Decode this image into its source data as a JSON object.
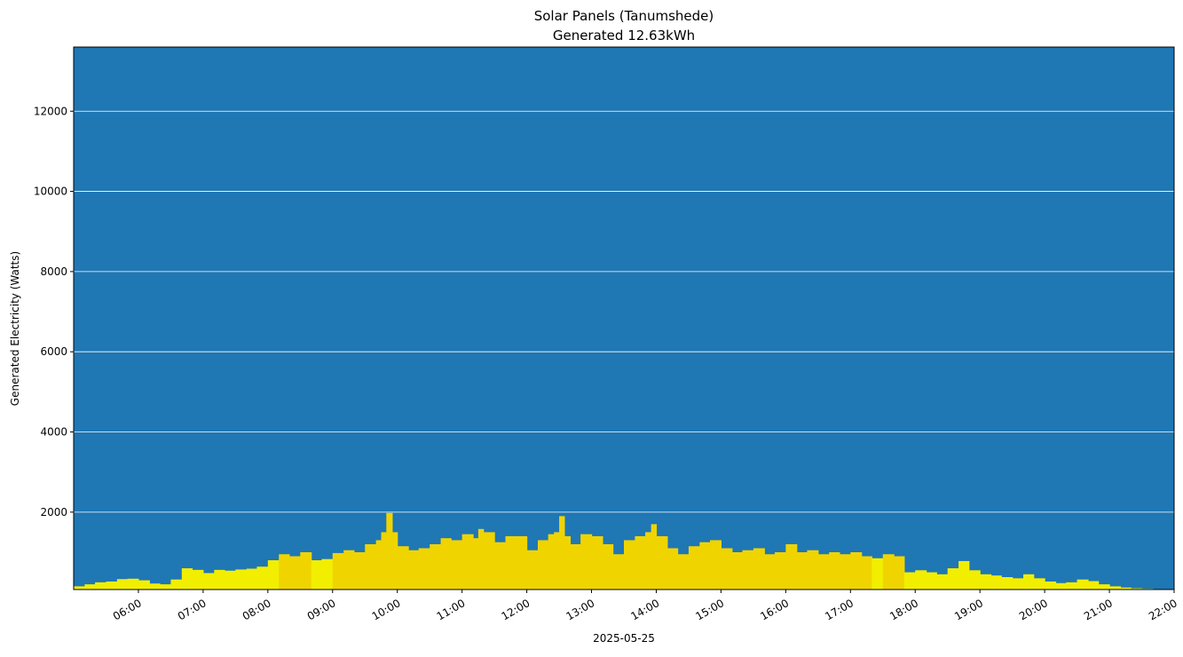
{
  "chart_data": {
    "type": "area",
    "title": "Solar Panels (Tanumshede)",
    "subtitle": "Generated 12.63kWh",
    "xlabel": "2025-05-25",
    "ylabel": "Generated Electricity (Watts)",
    "ylim": [
      70,
      13600
    ],
    "yticks": [
      2000,
      4000,
      6000,
      8000,
      10000,
      12000
    ],
    "xlim_hours": [
      5.0,
      22.0
    ],
    "xticks": [
      {
        "hour": 6,
        "label": "06:00"
      },
      {
        "hour": 7,
        "label": "07:00"
      },
      {
        "hour": 8,
        "label": "08:00"
      },
      {
        "hour": 9,
        "label": "09:00"
      },
      {
        "hour": 10,
        "label": "10:00"
      },
      {
        "hour": 11,
        "label": "11:00"
      },
      {
        "hour": 12,
        "label": "12:00"
      },
      {
        "hour": 13,
        "label": "13:00"
      },
      {
        "hour": 14,
        "label": "14:00"
      },
      {
        "hour": 15,
        "label": "15:00"
      },
      {
        "hour": 16,
        "label": "16:00"
      },
      {
        "hour": 17,
        "label": "17:00"
      },
      {
        "hour": 18,
        "label": "18:00"
      },
      {
        "hour": 19,
        "label": "19:00"
      },
      {
        "hour": 20,
        "label": "20:00"
      },
      {
        "hour": 21,
        "label": "21:00"
      },
      {
        "hour": 22,
        "label": "22:00"
      }
    ],
    "grid": "y",
    "colors": {
      "background": "#1f77b4",
      "area_low": "#f2ee00",
      "area_high": "#f0d400",
      "grid": "#ffffff"
    },
    "points": [
      [
        5.0,
        150
      ],
      [
        5.17,
        200
      ],
      [
        5.33,
        250
      ],
      [
        5.5,
        270
      ],
      [
        5.67,
        330
      ],
      [
        5.83,
        340
      ],
      [
        6.0,
        300
      ],
      [
        6.17,
        220
      ],
      [
        6.33,
        200
      ],
      [
        6.5,
        320
      ],
      [
        6.67,
        600
      ],
      [
        6.83,
        560
      ],
      [
        7.0,
        480
      ],
      [
        7.17,
        560
      ],
      [
        7.33,
        540
      ],
      [
        7.5,
        570
      ],
      [
        7.67,
        590
      ],
      [
        7.83,
        640
      ],
      [
        8.0,
        800
      ],
      [
        8.17,
        950
      ],
      [
        8.33,
        900
      ],
      [
        8.5,
        1000
      ],
      [
        8.67,
        800
      ],
      [
        8.83,
        830
      ],
      [
        9.0,
        980
      ],
      [
        9.17,
        1050
      ],
      [
        9.33,
        1000
      ],
      [
        9.5,
        1200
      ],
      [
        9.67,
        1300
      ],
      [
        9.75,
        1500
      ],
      [
        9.83,
        1980
      ],
      [
        9.92,
        1500
      ],
      [
        10.0,
        1150
      ],
      [
        10.17,
        1050
      ],
      [
        10.33,
        1100
      ],
      [
        10.5,
        1200
      ],
      [
        10.67,
        1350
      ],
      [
        10.83,
        1300
      ],
      [
        11.0,
        1450
      ],
      [
        11.17,
        1350
      ],
      [
        11.25,
        1580
      ],
      [
        11.33,
        1500
      ],
      [
        11.5,
        1250
      ],
      [
        11.67,
        1400
      ],
      [
        11.83,
        1400
      ],
      [
        12.0,
        1050
      ],
      [
        12.17,
        1300
      ],
      [
        12.33,
        1450
      ],
      [
        12.42,
        1500
      ],
      [
        12.5,
        1900
      ],
      [
        12.58,
        1400
      ],
      [
        12.67,
        1200
      ],
      [
        12.83,
        1450
      ],
      [
        13.0,
        1400
      ],
      [
        13.17,
        1200
      ],
      [
        13.33,
        950
      ],
      [
        13.5,
        1300
      ],
      [
        13.67,
        1400
      ],
      [
        13.83,
        1500
      ],
      [
        13.92,
        1700
      ],
      [
        14.0,
        1400
      ],
      [
        14.17,
        1100
      ],
      [
        14.33,
        950
      ],
      [
        14.5,
        1150
      ],
      [
        14.67,
        1250
      ],
      [
        14.83,
        1300
      ],
      [
        15.0,
        1100
      ],
      [
        15.17,
        1000
      ],
      [
        15.33,
        1050
      ],
      [
        15.5,
        1100
      ],
      [
        15.67,
        950
      ],
      [
        15.83,
        1000
      ],
      [
        16.0,
        1200
      ],
      [
        16.17,
        1000
      ],
      [
        16.33,
        1050
      ],
      [
        16.5,
        950
      ],
      [
        16.67,
        1000
      ],
      [
        16.83,
        950
      ],
      [
        17.0,
        1000
      ],
      [
        17.17,
        900
      ],
      [
        17.33,
        850
      ],
      [
        17.5,
        950
      ],
      [
        17.67,
        900
      ],
      [
        17.83,
        500
      ],
      [
        18.0,
        550
      ],
      [
        18.17,
        500
      ],
      [
        18.33,
        450
      ],
      [
        18.5,
        600
      ],
      [
        18.67,
        780
      ],
      [
        18.83,
        550
      ],
      [
        19.0,
        450
      ],
      [
        19.17,
        420
      ],
      [
        19.33,
        380
      ],
      [
        19.5,
        350
      ],
      [
        19.67,
        450
      ],
      [
        19.83,
        350
      ],
      [
        20.0,
        270
      ],
      [
        20.17,
        230
      ],
      [
        20.33,
        250
      ],
      [
        20.5,
        320
      ],
      [
        20.67,
        280
      ],
      [
        20.83,
        200
      ],
      [
        21.0,
        150
      ],
      [
        21.17,
        120
      ],
      [
        21.33,
        100
      ],
      [
        21.5,
        90
      ],
      [
        21.67,
        80
      ],
      [
        22.0,
        80
      ]
    ]
  }
}
